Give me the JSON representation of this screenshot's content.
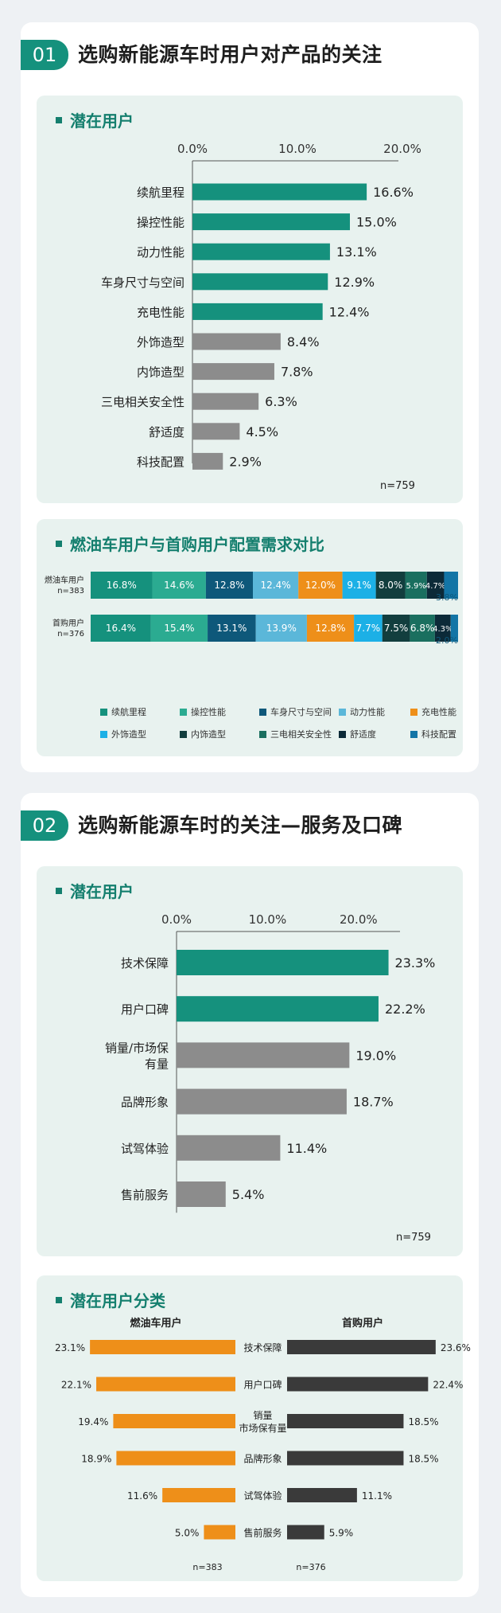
{
  "sections": [
    {
      "number": "01",
      "title": "选购新能源车时用户对产品的关注"
    },
    {
      "number": "02",
      "title": "选购新能源车时的关注—服务及口碑"
    }
  ],
  "chart_data": [
    {
      "type": "bar",
      "title": "潜在用户",
      "orientation": "horizontal",
      "categories": [
        "续航里程",
        "操控性能",
        "动力性能",
        "车身尺寸与空间",
        "充电性能",
        "外饰造型",
        "内饰造型",
        "三电相关安全性",
        "舒适度",
        "科技配置"
      ],
      "values": [
        16.6,
        15.0,
        13.1,
        12.9,
        12.4,
        8.4,
        7.8,
        6.3,
        4.5,
        2.9
      ],
      "value_labels": [
        "16.6%",
        "15.0%",
        "13.1%",
        "12.9%",
        "12.4%",
        "8.4%",
        "7.8%",
        "6.3%",
        "4.5%",
        "2.9%"
      ],
      "highlight_count": 5,
      "xlim": [
        0,
        20
      ],
      "ticks": [
        "0.0%",
        "10.0%",
        "20.0%"
      ],
      "note": "n=759",
      "colors": {
        "highlight": "#15917d",
        "other": "#8c8c8c"
      }
    },
    {
      "type": "bar",
      "stacked": true,
      "title": "燃油车用户与首购用户配置需求对比",
      "rows": [
        {
          "label": "燃油车用户",
          "n": "n=383",
          "values": [
            16.8,
            14.6,
            12.8,
            12.4,
            12.0,
            9.1,
            8.0,
            5.9,
            4.7,
            3.8
          ],
          "labels": [
            "16.8%",
            "14.6%",
            "12.8%",
            "12.4%",
            "12.0%",
            "9.1%",
            "8.0%",
            "5.9%",
            "4.7%",
            "3.8%"
          ]
        },
        {
          "label": "首购用户",
          "n": "n=376",
          "values": [
            16.4,
            15.4,
            13.1,
            13.9,
            12.8,
            7.7,
            7.5,
            6.8,
            4.3,
            2.0
          ],
          "labels": [
            "16.4%",
            "15.4%",
            "13.1%",
            "13.9%",
            "12.8%",
            "7.7%",
            "7.5%",
            "6.8%",
            "4.3%",
            "2.0%"
          ]
        }
      ],
      "series": [
        "续航里程",
        "操控性能",
        "车身尺寸与空间",
        "动力性能",
        "充电性能",
        "外饰造型",
        "内饰造型",
        "三电相关安全性",
        "舒适度",
        "科技配置"
      ],
      "colors": [
        "#15917d",
        "#2bab91",
        "#0e587a",
        "#5bb7d9",
        "#ee8f19",
        "#1cb0e6",
        "#123e3e",
        "#1a6f5f",
        "#0c2a38",
        "#1375a6"
      ],
      "legend_position": "bottom"
    },
    {
      "type": "bar",
      "title": "潜在用户",
      "orientation": "horizontal",
      "categories": [
        "技术保障",
        "用户口碑",
        "销量/市场保有量",
        "品牌形象",
        "试驾体验",
        "售前服务"
      ],
      "category_lines": [
        [
          "技术保障"
        ],
        [
          "用户口碑"
        ],
        [
          "销量/市场保",
          "有量"
        ],
        [
          "品牌形象"
        ],
        [
          "试驾体验"
        ],
        [
          "售前服务"
        ]
      ],
      "values": [
        23.3,
        22.2,
        19.0,
        18.7,
        11.4,
        5.4
      ],
      "value_labels": [
        "23.3%",
        "22.2%",
        "19.0%",
        "18.7%",
        "11.4%",
        "5.4%"
      ],
      "highlight_count": 2,
      "xlim": [
        0,
        25
      ],
      "ticks": [
        "0.0%",
        "10.0%",
        "20.0%"
      ],
      "tick_values": [
        0,
        10,
        20
      ],
      "note": "n=759",
      "colors": {
        "highlight": "#15917d",
        "other": "#8c8c8c"
      }
    },
    {
      "type": "bar",
      "title": "潜在用户分类",
      "orientation": "butterfly",
      "left_title": "燃油车用户",
      "right_title": "首购用户",
      "categories": [
        "技术保障",
        "用户口碑",
        "销量市场保有量",
        "品牌形象",
        "试驾体验",
        "售前服务"
      ],
      "category_lines": [
        [
          "技术保障"
        ],
        [
          "用户口碑"
        ],
        [
          "销量",
          "市场保有量"
        ],
        [
          "品牌形象"
        ],
        [
          "试驾体验"
        ],
        [
          "售前服务"
        ]
      ],
      "left_values": [
        23.1,
        22.1,
        19.4,
        18.9,
        11.6,
        5.0
      ],
      "left_labels": [
        "23.1%",
        "22.1%",
        "19.4%",
        "18.9%",
        "11.6%",
        "5.0%"
      ],
      "right_values": [
        23.6,
        22.4,
        18.5,
        18.5,
        11.1,
        5.9
      ],
      "right_labels": [
        "23.6%",
        "22.4%",
        "18.5%",
        "18.5%",
        "11.1%",
        "5.9%"
      ],
      "left_n": "n=383",
      "right_n": "n=376",
      "colors": {
        "left": "#ee8f19",
        "right": "#3a3a3a"
      }
    }
  ]
}
